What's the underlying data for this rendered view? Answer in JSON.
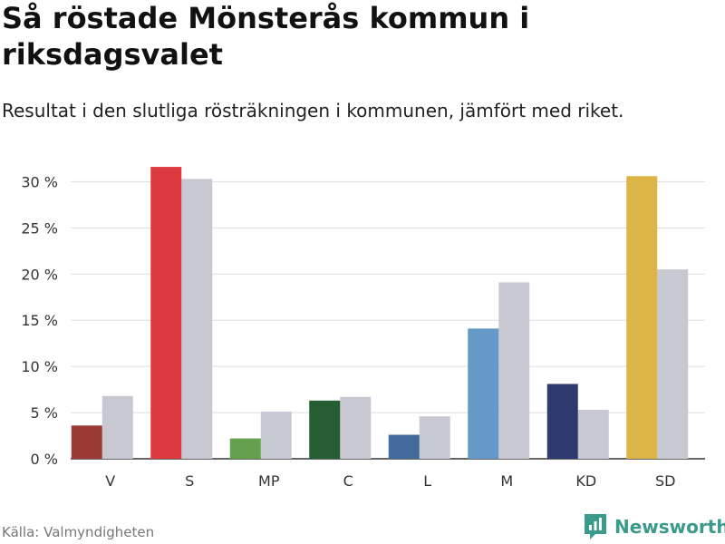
{
  "header": {
    "title": "Så röstade Mönsterås kommun i riksdagsvalet",
    "subtitle": "Resultat i den slutliga rösträkningen i kommunen, jämfört med riket."
  },
  "footer": {
    "source": "Källa: Valmyndigheten",
    "brand": "Newsworthy",
    "brand_icon": "bar-chart-logo-icon",
    "brand_color": "#3a9a8c"
  },
  "chart_data": {
    "type": "bar",
    "title": "Så röstade Mönsterås kommun i riksdagsvalet",
    "subtitle": "Resultat i den slutliga rösträkningen i kommunen, jämfört med riket.",
    "categories": [
      "V",
      "S",
      "MP",
      "C",
      "L",
      "M",
      "KD",
      "SD"
    ],
    "series": [
      {
        "values": [
          3.6,
          31.6,
          2.2,
          6.3,
          2.6,
          14.1,
          8.1,
          30.6
        ],
        "colors": [
          "#9b3a35",
          "#dc3a3f",
          "#64a04e",
          "#255e33",
          "#416b9a",
          "#6499c8",
          "#2e3a6e",
          "#ddb447"
        ]
      },
      {
        "values": [
          6.8,
          30.3,
          5.1,
          6.7,
          4.6,
          19.1,
          5.3,
          20.5
        ],
        "color": "#c8c8d2"
      }
    ],
    "ylim": [
      0,
      32
    ],
    "yticks": [
      0,
      5,
      10,
      15,
      20,
      25,
      30
    ],
    "ytick_labels": [
      "0 %",
      "5 %",
      "10 %",
      "15 %",
      "20 %",
      "25 %",
      "30 %"
    ],
    "grid": true
  }
}
